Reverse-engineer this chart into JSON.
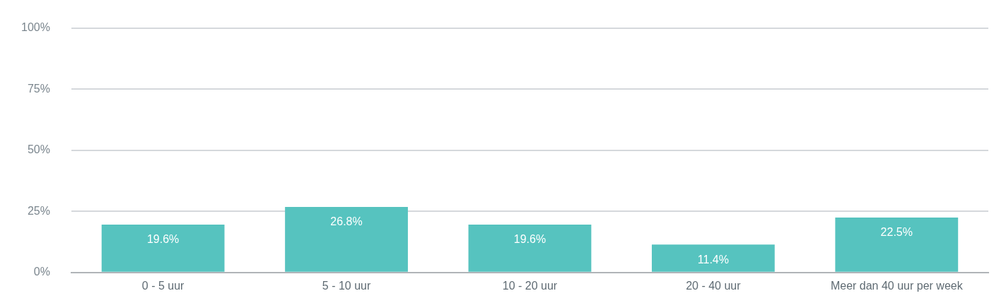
{
  "chart_data": {
    "type": "bar",
    "categories": [
      "0 - 5 uur",
      "5 - 10 uur",
      "10 - 20 uur",
      "20 - 40 uur",
      "Meer dan 40 uur per week"
    ],
    "values": [
      19.6,
      26.8,
      19.6,
      11.4,
      22.5
    ],
    "value_labels": [
      "19.6%",
      "26.8%",
      "19.6%",
      "11.4%",
      "22.5%"
    ],
    "color": "#56c3bf",
    "ylim": [
      0,
      100
    ],
    "yticks": [
      {
        "value": 0,
        "label": "0%"
      },
      {
        "value": 25,
        "label": "25%"
      },
      {
        "value": 50,
        "label": "50%"
      },
      {
        "value": 75,
        "label": "75%"
      },
      {
        "value": 100,
        "label": "100%"
      }
    ],
    "grid": "y",
    "legend": false
  }
}
